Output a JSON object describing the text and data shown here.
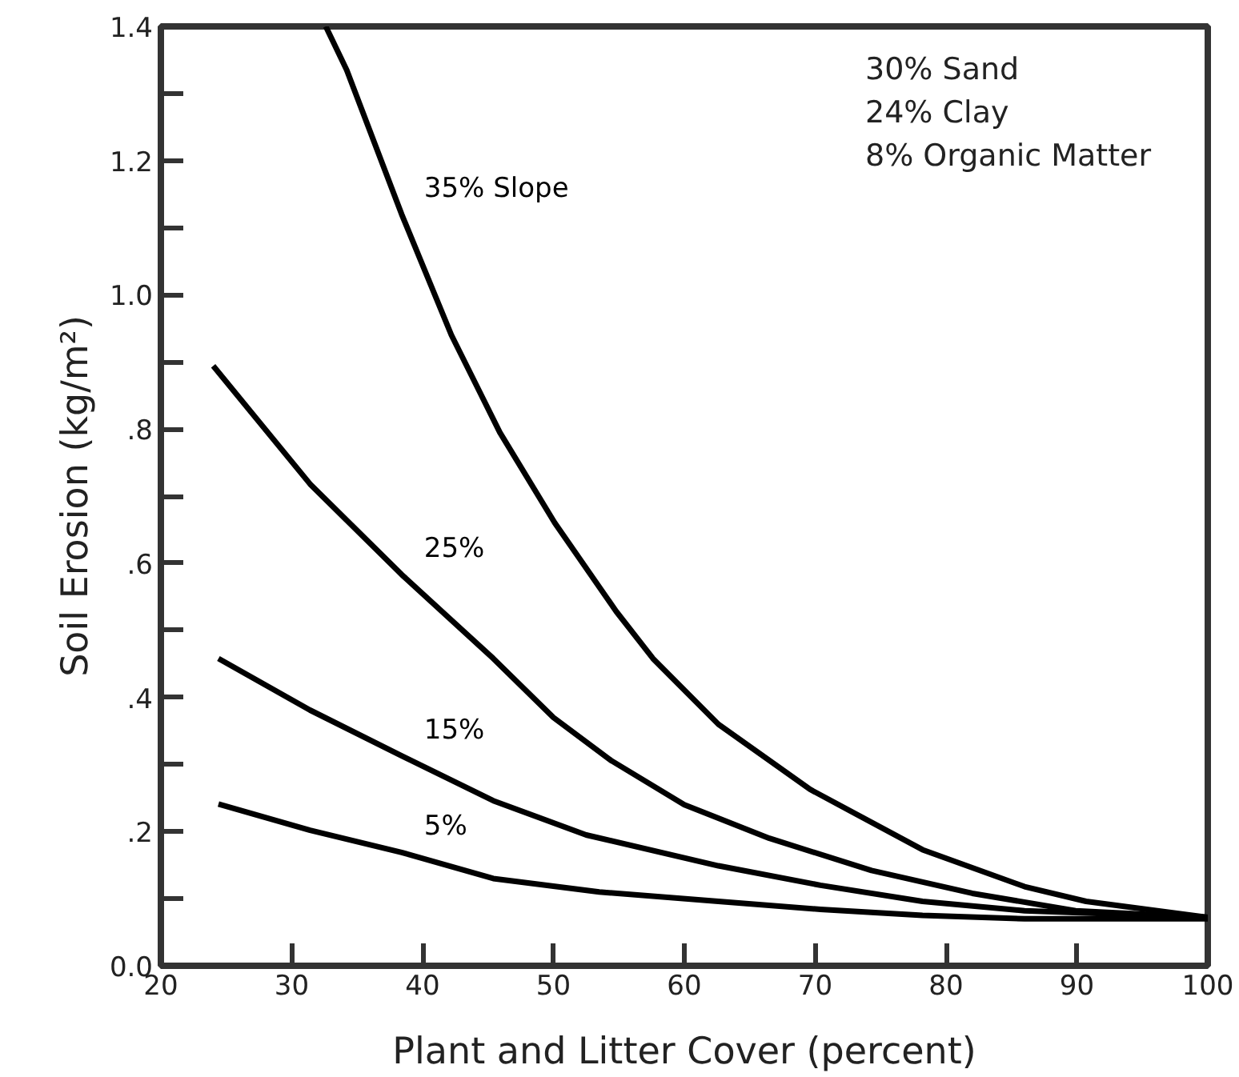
{
  "chart_data": {
    "type": "line",
    "xlabel": "Plant and Litter Cover (percent)",
    "ylabel": "Soil Erosion (kg/m²)",
    "xlim": [
      20,
      100
    ],
    "ylim": [
      0,
      1.4
    ],
    "xticks": [
      20,
      30,
      40,
      50,
      60,
      70,
      80,
      90,
      100
    ],
    "yticks": [
      {
        "value": 0,
        "label": "0.0"
      },
      {
        "value": 0.1,
        "label": null
      },
      {
        "value": 0.2,
        "label": ".2"
      },
      {
        "value": 0.3,
        "label": null
      },
      {
        "value": 0.4,
        "label": ".4"
      },
      {
        "value": 0.5,
        "label": null
      },
      {
        "value": 0.6,
        "label": ".6"
      },
      {
        "value": 0.7,
        "label": null
      },
      {
        "value": 0.8,
        "label": ".8"
      },
      {
        "value": 0.9,
        "label": null
      },
      {
        "value": 1.0,
        "label": "1.0"
      },
      {
        "value": 1.1,
        "label": null
      },
      {
        "value": 1.2,
        "label": "1.2"
      },
      {
        "value": 1.3,
        "label": null
      },
      {
        "value": 1.4,
        "label": "1.4"
      }
    ],
    "series": [
      {
        "name": "35% Slope",
        "color": "#000000",
        "x": [
          32.6,
          34.2,
          38.4,
          42.2,
          45.9,
          50.1,
          54.8,
          57.6,
          62.6,
          69.6,
          78.2,
          86.0,
          90.7,
          100
        ],
        "values": [
          1.4,
          1.335,
          1.12,
          0.94,
          0.795,
          0.66,
          0.528,
          0.458,
          0.36,
          0.263,
          0.173,
          0.118,
          0.096,
          0.072
        ]
      },
      {
        "name": "25%",
        "color": "#000000",
        "x": [
          24.0,
          31.4,
          38.4,
          45.4,
          50.0,
          54.4,
          60.0,
          66.5,
          74.3,
          82.0,
          89.9,
          100
        ],
        "values": [
          0.894,
          0.718,
          0.583,
          0.458,
          0.37,
          0.306,
          0.24,
          0.19,
          0.142,
          0.108,
          0.082,
          0.072
        ]
      },
      {
        "name": "15%",
        "color": "#000000",
        "x": [
          24.4,
          31.4,
          38.4,
          45.4,
          52.5,
          62.6,
          70.4,
          78.2,
          86.0,
          100
        ],
        "values": [
          0.458,
          0.381,
          0.313,
          0.246,
          0.195,
          0.149,
          0.12,
          0.096,
          0.082,
          0.072
        ]
      },
      {
        "name": "5%",
        "color": "#000000",
        "x": [
          24.4,
          31.4,
          38.4,
          45.4,
          53.5,
          62.6,
          70.4,
          78.2,
          86.0,
          100
        ],
        "values": [
          0.241,
          0.202,
          0.169,
          0.13,
          0.11,
          0.096,
          0.084,
          0.075,
          0.07,
          0.07
        ]
      }
    ],
    "annotations": [
      "30% Sand",
      "24% Clay",
      "  8% Organic Matter"
    ]
  }
}
